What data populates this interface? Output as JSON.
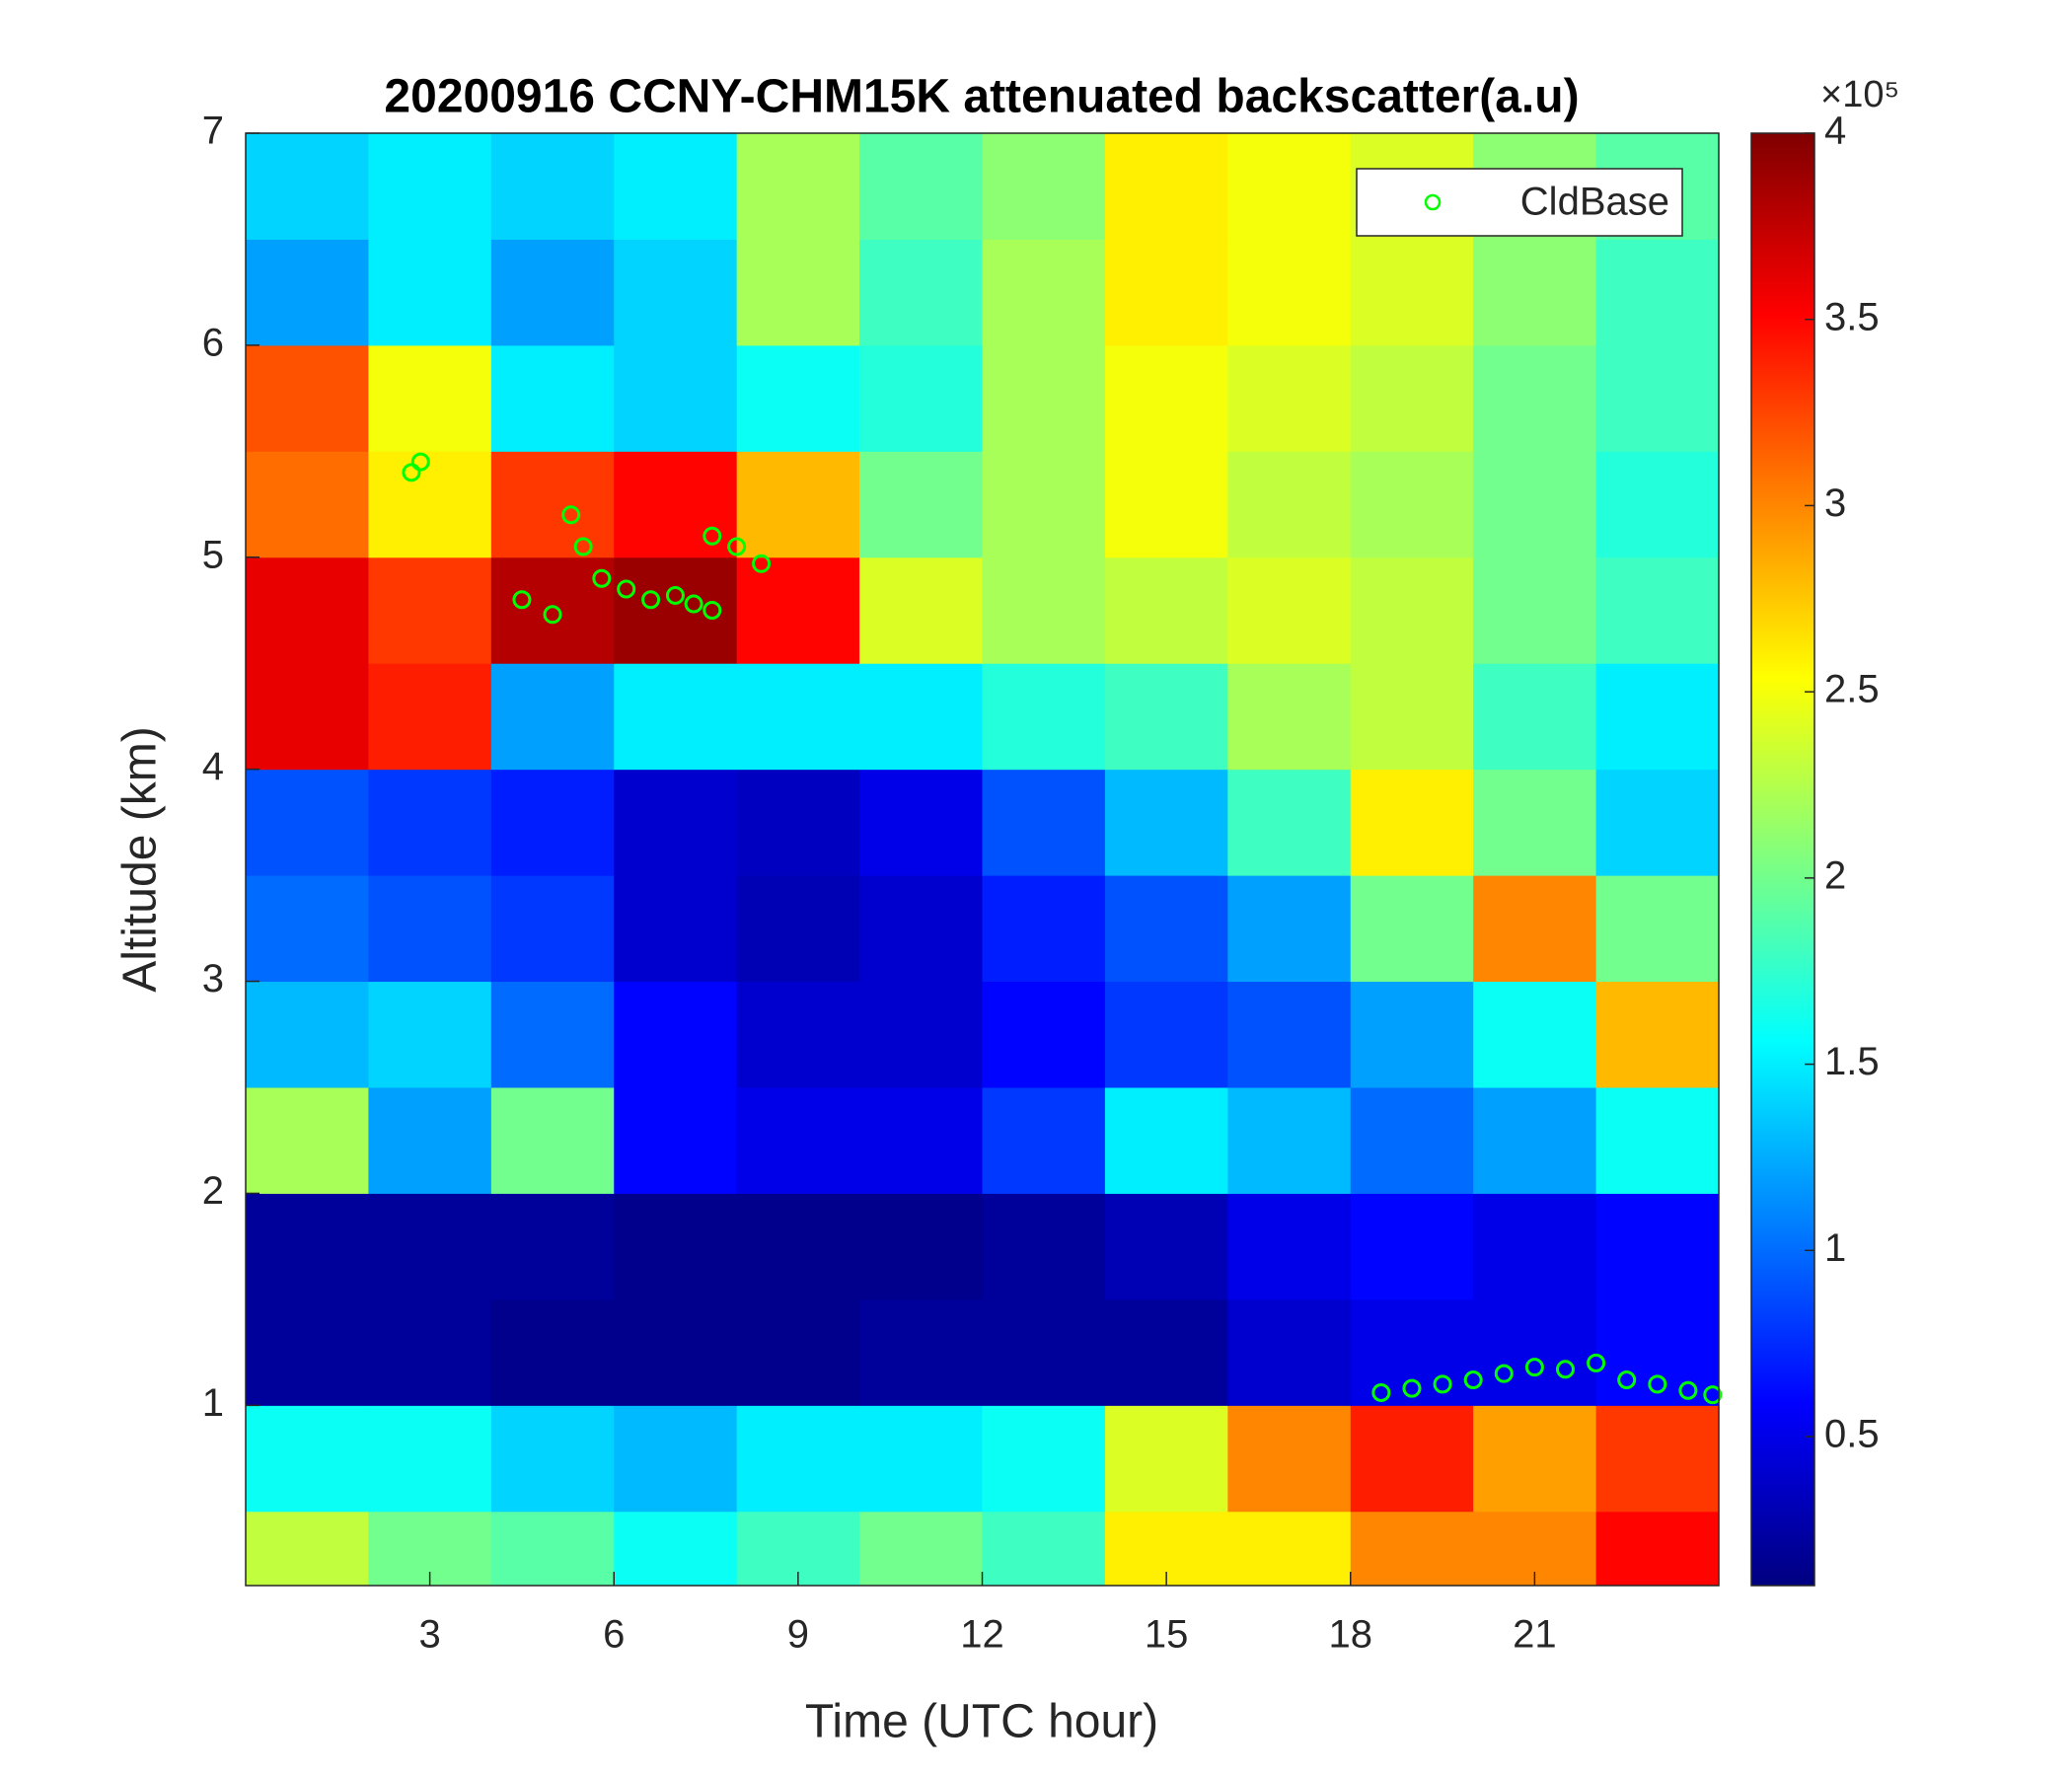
{
  "chart_data": {
    "type": "heatmap",
    "title": "20200916 CCNY-CHM15K attenuated backscatter(a.u)",
    "xlabel": "Time (UTC hour)",
    "ylabel": "Altitude (km)",
    "colormap": "jet",
    "xlim": [
      0,
      24
    ],
    "xticks": [
      3,
      6,
      9,
      12,
      15,
      18,
      21
    ],
    "ylim": [
      0.15,
      7
    ],
    "yticks": [
      1,
      2,
      3,
      4,
      5,
      6,
      7
    ],
    "xbins": [
      0,
      2,
      4,
      6,
      8,
      10,
      12,
      14,
      16,
      18,
      20,
      22,
      24
    ],
    "ybins": [
      0.15,
      0.5,
      1,
      1.5,
      2,
      2.5,
      3,
      3.5,
      4,
      4.5,
      5,
      5.5,
      6,
      6.5,
      7
    ],
    "z": [
      [
        2.3,
        2.0,
        1.9,
        1.6,
        1.8,
        2.0,
        1.8,
        2.6,
        2.6,
        3.0,
        3.0,
        3.5
      ],
      [
        1.6,
        1.6,
        1.4,
        1.3,
        1.5,
        1.5,
        1.6,
        2.4,
        3.0,
        3.4,
        2.9,
        3.3
      ],
      [
        0.2,
        0.2,
        0.15,
        0.15,
        0.15,
        0.2,
        0.2,
        0.2,
        0.4,
        0.5,
        0.5,
        0.6
      ],
      [
        0.2,
        0.2,
        0.2,
        0.15,
        0.15,
        0.15,
        0.2,
        0.3,
        0.5,
        0.6,
        0.5,
        0.6
      ],
      [
        2.2,
        1.2,
        2.0,
        0.6,
        0.5,
        0.5,
        0.8,
        1.5,
        1.3,
        1.0,
        1.2,
        1.6
      ],
      [
        1.3,
        1.4,
        1.0,
        0.6,
        0.4,
        0.4,
        0.6,
        0.8,
        0.9,
        1.2,
        1.6,
        2.8
      ],
      [
        1.0,
        0.9,
        0.8,
        0.4,
        0.3,
        0.4,
        0.7,
        0.9,
        1.2,
        2.0,
        3.0,
        2.0
      ],
      [
        0.9,
        0.8,
        0.7,
        0.4,
        0.35,
        0.5,
        0.9,
        1.3,
        1.8,
        2.6,
        2.0,
        1.4
      ],
      [
        3.6,
        3.4,
        1.2,
        1.5,
        1.5,
        1.5,
        1.7,
        1.8,
        2.2,
        2.3,
        1.8,
        1.5
      ],
      [
        3.6,
        3.3,
        3.8,
        3.9,
        3.5,
        2.4,
        2.2,
        2.3,
        2.4,
        2.3,
        2.0,
        1.8
      ],
      [
        3.1,
        2.6,
        3.3,
        3.5,
        2.8,
        2.0,
        2.2,
        2.5,
        2.3,
        2.2,
        2.0,
        1.7
      ],
      [
        3.2,
        2.5,
        1.5,
        1.4,
        1.6,
        1.7,
        2.2,
        2.5,
        2.4,
        2.3,
        2.0,
        1.8
      ],
      [
        1.2,
        1.5,
        1.2,
        1.4,
        2.2,
        1.8,
        2.2,
        2.6,
        2.5,
        2.4,
        2.1,
        1.8
      ],
      [
        1.4,
        1.5,
        1.4,
        1.5,
        2.2,
        1.9,
        2.1,
        2.6,
        2.5,
        2.4,
        2.1,
        1.9
      ]
    ],
    "clim": [
      0.1,
      4
    ],
    "cticks": [
      0.5,
      1,
      1.5,
      2,
      2.5,
      3,
      3.5,
      4
    ],
    "colorbar_multiplier": "×10⁵",
    "series": [
      {
        "name": "CldBase",
        "color": "#00ff00",
        "x": [
          2.7,
          2.85,
          4.5,
          5.0,
          5.3,
          5.5,
          5.8,
          6.2,
          6.6,
          7.0,
          7.3,
          7.6,
          7.6,
          8.0,
          8.4,
          18.5,
          19.0,
          19.5,
          20.0,
          20.5,
          21.0,
          21.5,
          22.0,
          22.5,
          23.0,
          23.5,
          23.9
        ],
        "y": [
          5.4,
          5.45,
          4.8,
          4.73,
          5.2,
          5.05,
          4.9,
          4.85,
          4.8,
          4.82,
          4.78,
          4.75,
          5.1,
          5.05,
          4.97,
          1.06,
          1.08,
          1.1,
          1.12,
          1.15,
          1.18,
          1.17,
          1.2,
          1.12,
          1.1,
          1.07,
          1.05
        ]
      }
    ],
    "legend": "upper right"
  }
}
